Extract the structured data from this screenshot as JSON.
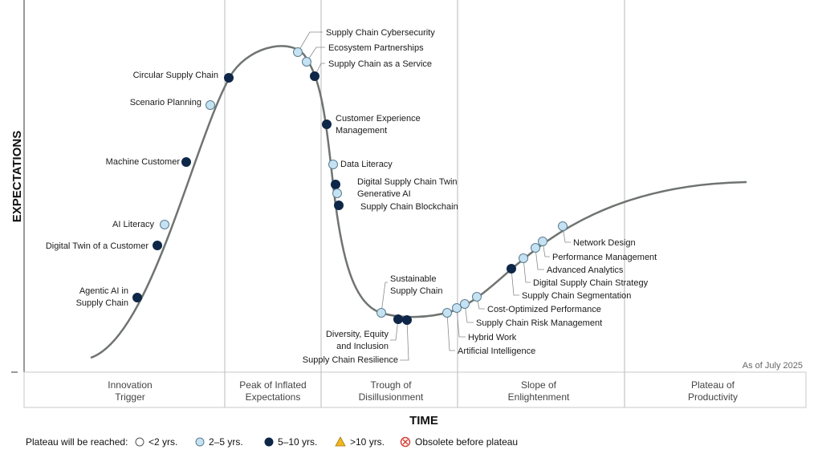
{
  "axes": {
    "y_title": "EXPECTATIONS",
    "x_title": "TIME"
  },
  "as_of": "As of July 2025",
  "phases": [
    {
      "lines": [
        "Innovation",
        "Trigger"
      ]
    },
    {
      "lines": [
        "Peak of Inflated",
        "Expectations"
      ]
    },
    {
      "lines": [
        "Trough of",
        "Disillusionment"
      ]
    },
    {
      "lines": [
        "Slope of",
        "Enlightenment"
      ]
    },
    {
      "lines": [
        "Plateau of",
        "Productivity"
      ]
    }
  ],
  "legend": {
    "title": "Plateau will be reached:",
    "items": [
      {
        "label": "<2 yrs.",
        "marker": "circle-white"
      },
      {
        "label": "2–5 yrs.",
        "marker": "circle-lightblue"
      },
      {
        "label": "5–10 yrs.",
        "marker": "circle-navy"
      },
      {
        "label": ">10 yrs.",
        "marker": "triangle-yellow"
      },
      {
        "label": "Obsolete before plateau",
        "marker": "x-circle-red"
      }
    ]
  },
  "colors": {
    "light": "#c5e2f2",
    "dark": "#0e2748",
    "curve": "#6f7470",
    "yellow": "#f2b51d",
    "red": "#d63b32"
  },
  "technologies": [
    {
      "lines": [
        "Agentic AI in",
        "Supply Chain"
      ],
      "category": "5-10"
    },
    {
      "lines": [
        "Digital Twin of a Customer"
      ],
      "category": "5-10"
    },
    {
      "lines": [
        "AI Literacy"
      ],
      "category": "2-5"
    },
    {
      "lines": [
        "Machine Customer"
      ],
      "category": "5-10"
    },
    {
      "lines": [
        "Scenario Planning"
      ],
      "category": "2-5"
    },
    {
      "lines": [
        "Circular Supply Chain"
      ],
      "category": "5-10"
    },
    {
      "lines": [
        "Supply Chain Cybersecurity"
      ],
      "category": "2-5"
    },
    {
      "lines": [
        "Ecosystem Partnerships"
      ],
      "category": "2-5"
    },
    {
      "lines": [
        "Supply Chain as a Service"
      ],
      "category": "5-10"
    },
    {
      "lines": [
        "Customer Experience",
        "Management"
      ],
      "category": "5-10"
    },
    {
      "lines": [
        "Data Literacy"
      ],
      "category": "2-5"
    },
    {
      "lines": [
        "Digital Supply Chain Twin"
      ],
      "category": "5-10"
    },
    {
      "lines": [
        "Generative AI"
      ],
      "category": "2-5"
    },
    {
      "lines": [
        "Supply Chain Blockchain"
      ],
      "category": "5-10"
    },
    {
      "lines": [
        "Sustainable",
        "Supply Chain"
      ],
      "category": "2-5"
    },
    {
      "lines": [
        "Diversity, Equity",
        "and Inclusion"
      ],
      "category": "5-10"
    },
    {
      "lines": [
        "Supply Chain Resilience"
      ],
      "category": "5-10"
    },
    {
      "lines": [
        "Artificial Intelligence"
      ],
      "category": "2-5"
    },
    {
      "lines": [
        "Hybrid Work"
      ],
      "category": "2-5"
    },
    {
      "lines": [
        "Supply Chain Risk Management"
      ],
      "category": "2-5"
    },
    {
      "lines": [
        "Cost-Optimized Performance"
      ],
      "category": "2-5"
    },
    {
      "lines": [
        "Supply Chain Segmentation"
      ],
      "category": "5-10"
    },
    {
      "lines": [
        "Digital Supply Chain Strategy"
      ],
      "category": "2-5"
    },
    {
      "lines": [
        "Advanced Analytics"
      ],
      "category": "2-5"
    },
    {
      "lines": [
        "Performance Management"
      ],
      "category": "2-5"
    },
    {
      "lines": [
        "Network Design"
      ],
      "category": "2-5"
    }
  ]
}
